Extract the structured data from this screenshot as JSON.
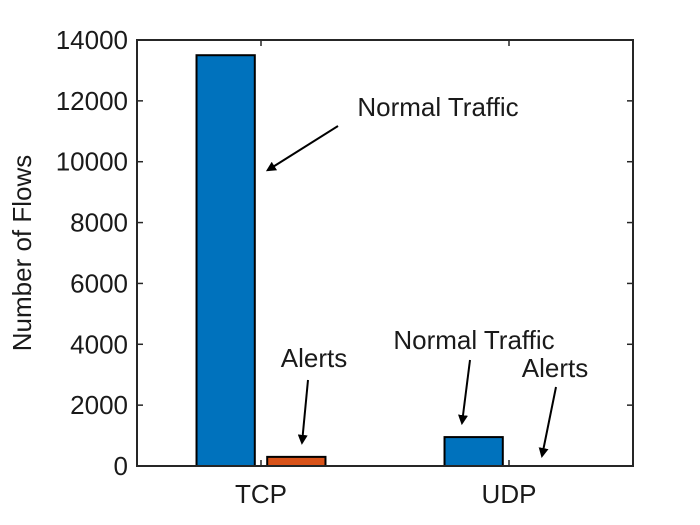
{
  "chart_data": {
    "type": "bar",
    "categories": [
      "TCP",
      "UDP"
    ],
    "series": [
      {
        "values": [
          13500,
          950
        ],
        "color": "#0072BD"
      },
      {
        "values": [
          300,
          0
        ],
        "color": "#D95319"
      }
    ],
    "title": "",
    "xlabel": "",
    "ylabel": "Number of Flows",
    "ylim": [
      0,
      14000
    ],
    "yticks": [
      0,
      2000,
      4000,
      6000,
      8000,
      10000,
      12000,
      14000
    ],
    "ytick_labels": [
      "0",
      "2000",
      "4000",
      "6000",
      "8000",
      "10000",
      "12000",
      "14000"
    ],
    "grid": false,
    "annotations": [
      {
        "text": "Normal Traffic",
        "category": "TCP",
        "series_index": 0
      },
      {
        "text": "Alerts",
        "category": "TCP",
        "series_index": 1
      },
      {
        "text": "Normal Traffic",
        "category": "UDP",
        "series_index": 0
      },
      {
        "text": "Alerts",
        "category": "UDP",
        "series_index": 1
      }
    ]
  }
}
